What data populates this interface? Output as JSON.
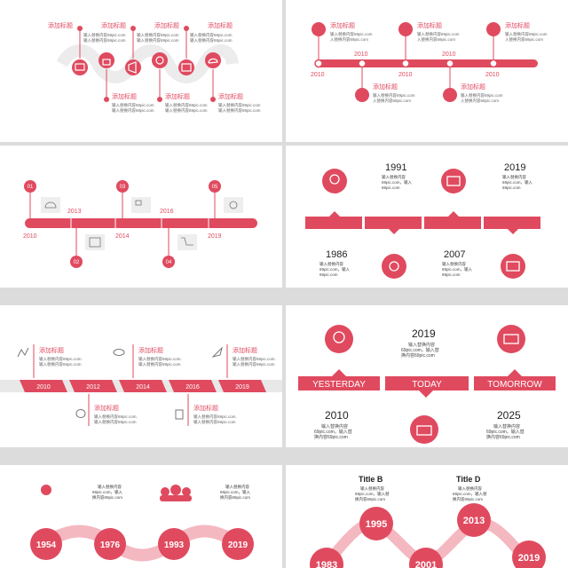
{
  "colors": {
    "accent": "#e04a5f",
    "accent_light": "#f4b8c1",
    "gray_text": "#555555",
    "dark_text": "#222222",
    "tile": "#eeeeee",
    "band": "#e8e8e8"
  },
  "slide1": {
    "top_titles": [
      "添加标题",
      "添加标题",
      "添加标题",
      "添加标题"
    ],
    "bottom_titles": [
      "添加标题",
      "添加标题",
      "添加标题",
      "添加标题"
    ],
    "desc1": "输入替换内容69pic.com",
    "desc2": "输入替换内容69pic.com",
    "icons": [
      "monitor-icon",
      "lock-icon",
      "megaphone-icon",
      "gear-icon",
      "box-icon",
      "cloud-icon"
    ]
  },
  "slide2": {
    "top_titles": [
      "添加标题",
      "添加标题",
      "添加标题"
    ],
    "bottom_titles": [
      "添加标题",
      "添加标题"
    ],
    "desc1": "输入替换内容69pic.com",
    "desc2": "入替换内容69pic.com",
    "bottom_years": [
      "2010",
      "2010",
      "2010",
      "2010",
      "2010"
    ],
    "top_years": [
      "2010",
      "2010"
    ]
  },
  "slide3": {
    "numbers": [
      "01",
      "02",
      "03",
      "04",
      "05"
    ],
    "years_below": [
      "2010",
      "2014",
      "2019"
    ],
    "years_above": [
      "2013",
      "2016"
    ]
  },
  "slide4": {
    "years_top": [
      "1991",
      "2019"
    ],
    "years_bottom": [
      "1986",
      "2007"
    ],
    "desc_line1": "输入替换内容",
    "desc_line2": "69pic.com，输入",
    "desc_line3": "替换内容",
    "desc_line4": "69pic.com"
  },
  "slide5": {
    "titles_top": [
      "添加标题",
      "添加标题",
      "添加标题"
    ],
    "titles_bottom": [
      "添加标题",
      "添加标题"
    ],
    "desc1": "输入替换内容69pic.com.",
    "desc2": "输入替换内容69pic.com",
    "years": [
      "2010",
      "2012",
      "2014",
      "2016",
      "2019"
    ]
  },
  "slide6": {
    "labels": [
      "YESTERDAY",
      "TODAY",
      "TOMORROW"
    ],
    "year_top": "2019",
    "years_bottom": [
      "2010",
      "2025"
    ],
    "desc_line1": "输入替换内容",
    "desc_line2": "69pic.com，输入替",
    "desc_line3": "换内容69pic.com"
  },
  "slide7": {
    "years": [
      "1954",
      "1976",
      "1993",
      "2019"
    ],
    "desc_line1": "输入替换内容",
    "desc_line2": "69pic.com，输入",
    "desc_line3": "换内容69pic.com"
  },
  "slide8": {
    "titles": [
      "Title B",
      "Title D"
    ],
    "years_mid": [
      "1995",
      "2013"
    ],
    "years_low": [
      "1983",
      "2001",
      "2019"
    ],
    "desc_line1": "输入替换内容",
    "desc_line2": "69pic.com，输入替",
    "desc_line3": "换内容69pic.com"
  }
}
